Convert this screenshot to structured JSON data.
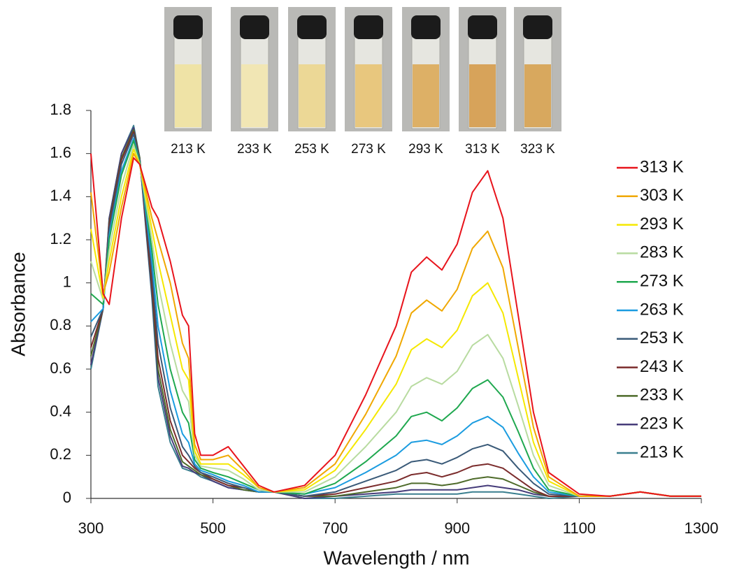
{
  "chart_data": {
    "type": "line",
    "xlabel": "Wavelength / nm",
    "ylabel": "Absorbance",
    "xlim": [
      300,
      1300
    ],
    "ylim": [
      0,
      1.8
    ],
    "xticks": [
      300,
      500,
      700,
      900,
      1100,
      1300
    ],
    "yticks": [
      0,
      0.2,
      0.4,
      0.6,
      0.8,
      1,
      1.2,
      1.4,
      1.6,
      1.8
    ],
    "grid": false,
    "legend": "right",
    "inset_labels": [
      "213 K",
      "233 K",
      "253 K",
      "273 K",
      "293 K",
      "313 K",
      "323 K"
    ],
    "x": [
      300,
      320,
      330,
      350,
      370,
      380,
      400,
      410,
      430,
      450,
      460,
      470,
      480,
      500,
      525,
      550,
      575,
      600,
      650,
      700,
      750,
      800,
      825,
      850,
      875,
      900,
      925,
      950,
      975,
      1000,
      1025,
      1050,
      1100,
      1150,
      1200,
      1250,
      1300
    ],
    "series": [
      {
        "name": "313 K",
        "color": "#e8141c",
        "values": [
          1.6,
          0.95,
          0.9,
          1.3,
          1.58,
          1.55,
          1.35,
          1.3,
          1.1,
          0.85,
          0.8,
          0.3,
          0.2,
          0.2,
          0.24,
          0.15,
          0.06,
          0.03,
          0.06,
          0.2,
          0.48,
          0.8,
          1.05,
          1.12,
          1.06,
          1.18,
          1.42,
          1.52,
          1.3,
          0.85,
          0.4,
          0.12,
          0.02,
          0.01,
          0.03,
          0.01,
          0.01
        ]
      },
      {
        "name": "303 K",
        "color": "#f0a800",
        "values": [
          1.42,
          0.95,
          1.05,
          1.35,
          1.6,
          1.55,
          1.3,
          1.2,
          1.0,
          0.72,
          0.65,
          0.25,
          0.18,
          0.18,
          0.2,
          0.13,
          0.05,
          0.03,
          0.05,
          0.16,
          0.39,
          0.66,
          0.86,
          0.92,
          0.87,
          0.97,
          1.16,
          1.24,
          1.07,
          0.7,
          0.33,
          0.1,
          0.01,
          0.01,
          0.03,
          0.01,
          0.01
        ]
      },
      {
        "name": "293 K",
        "color": "#f5e800",
        "values": [
          1.25,
          0.93,
          1.1,
          1.4,
          1.62,
          1.55,
          1.25,
          1.1,
          0.85,
          0.6,
          0.55,
          0.22,
          0.16,
          0.16,
          0.16,
          0.11,
          0.05,
          0.03,
          0.04,
          0.13,
          0.32,
          0.53,
          0.69,
          0.74,
          0.7,
          0.78,
          0.94,
          1.0,
          0.86,
          0.56,
          0.26,
          0.08,
          0.01,
          0.01,
          0.03,
          0.01,
          0.01
        ]
      },
      {
        "name": "283 K",
        "color": "#b8dba0",
        "values": [
          1.1,
          0.92,
          1.15,
          1.45,
          1.64,
          1.55,
          1.2,
          1.0,
          0.72,
          0.5,
          0.45,
          0.2,
          0.15,
          0.14,
          0.13,
          0.09,
          0.04,
          0.03,
          0.03,
          0.1,
          0.24,
          0.4,
          0.52,
          0.56,
          0.53,
          0.59,
          0.71,
          0.76,
          0.65,
          0.43,
          0.2,
          0.06,
          0.01,
          0.01,
          0.03,
          0.01,
          0.01
        ]
      },
      {
        "name": "273 K",
        "color": "#1fa84f",
        "values": [
          0.95,
          0.9,
          1.2,
          1.5,
          1.66,
          1.56,
          1.15,
          0.9,
          0.6,
          0.4,
          0.35,
          0.18,
          0.14,
          0.12,
          0.1,
          0.07,
          0.04,
          0.03,
          0.02,
          0.07,
          0.17,
          0.29,
          0.38,
          0.4,
          0.36,
          0.42,
          0.51,
          0.55,
          0.47,
          0.31,
          0.14,
          0.04,
          0.01,
          0.01,
          0.03,
          0.01,
          0.01
        ]
      },
      {
        "name": "263 K",
        "color": "#1b9ce0",
        "values": [
          0.82,
          0.88,
          1.22,
          1.52,
          1.67,
          1.56,
          1.1,
          0.8,
          0.5,
          0.3,
          0.26,
          0.16,
          0.13,
          0.11,
          0.08,
          0.06,
          0.03,
          0.03,
          0.02,
          0.05,
          0.12,
          0.2,
          0.26,
          0.27,
          0.25,
          0.29,
          0.35,
          0.38,
          0.33,
          0.21,
          0.1,
          0.03,
          0.01,
          0.01,
          0.03,
          0.01,
          0.01
        ]
      },
      {
        "name": "253 K",
        "color": "#3a5a78",
        "values": [
          0.75,
          0.88,
          1.25,
          1.55,
          1.69,
          1.57,
          1.05,
          0.72,
          0.42,
          0.24,
          0.2,
          0.15,
          0.12,
          0.1,
          0.07,
          0.05,
          0.03,
          0.03,
          0.01,
          0.03,
          0.08,
          0.13,
          0.17,
          0.18,
          0.16,
          0.19,
          0.23,
          0.25,
          0.22,
          0.14,
          0.07,
          0.02,
          0.01,
          0.01,
          0.03,
          0.01,
          0.01
        ]
      },
      {
        "name": "243 K",
        "color": "#7b2c2c",
        "values": [
          0.7,
          0.88,
          1.27,
          1.57,
          1.7,
          1.57,
          1.0,
          0.65,
          0.36,
          0.2,
          0.17,
          0.14,
          0.12,
          0.09,
          0.06,
          0.05,
          0.03,
          0.03,
          0.01,
          0.02,
          0.05,
          0.08,
          0.11,
          0.12,
          0.1,
          0.12,
          0.15,
          0.16,
          0.14,
          0.09,
          0.04,
          0.01,
          0.01,
          0.01,
          0.03,
          0.01,
          0.01
        ]
      },
      {
        "name": "233 K",
        "color": "#4e6b2a",
        "values": [
          0.66,
          0.88,
          1.28,
          1.58,
          1.71,
          1.58,
          0.98,
          0.6,
          0.32,
          0.17,
          0.15,
          0.13,
          0.11,
          0.09,
          0.06,
          0.04,
          0.03,
          0.03,
          0.01,
          0.01,
          0.03,
          0.05,
          0.07,
          0.07,
          0.06,
          0.07,
          0.09,
          0.1,
          0.09,
          0.06,
          0.03,
          0.01,
          0.01,
          0.01,
          0.03,
          0.01,
          0.01
        ]
      },
      {
        "name": "223 K",
        "color": "#463c7a",
        "values": [
          0.62,
          0.88,
          1.3,
          1.6,
          1.72,
          1.58,
          0.95,
          0.56,
          0.29,
          0.15,
          0.14,
          0.12,
          0.11,
          0.08,
          0.05,
          0.04,
          0.03,
          0.03,
          0,
          0.01,
          0.02,
          0.03,
          0.04,
          0.04,
          0.04,
          0.04,
          0.05,
          0.06,
          0.05,
          0.04,
          0.02,
          0.01,
          0.01,
          0.01,
          0.03,
          0.01,
          0.01
        ]
      },
      {
        "name": "213 K",
        "color": "#3a7f8f",
        "values": [
          0.6,
          0.88,
          1.3,
          1.6,
          1.73,
          1.58,
          0.93,
          0.52,
          0.26,
          0.14,
          0.13,
          0.12,
          0.1,
          0.08,
          0.05,
          0.04,
          0.03,
          0.03,
          0,
          0,
          0.01,
          0.02,
          0.02,
          0.02,
          0.02,
          0.02,
          0.03,
          0.03,
          0.03,
          0.02,
          0.01,
          0,
          0.01,
          0.01,
          0.03,
          0.01,
          0.01
        ]
      }
    ]
  }
}
